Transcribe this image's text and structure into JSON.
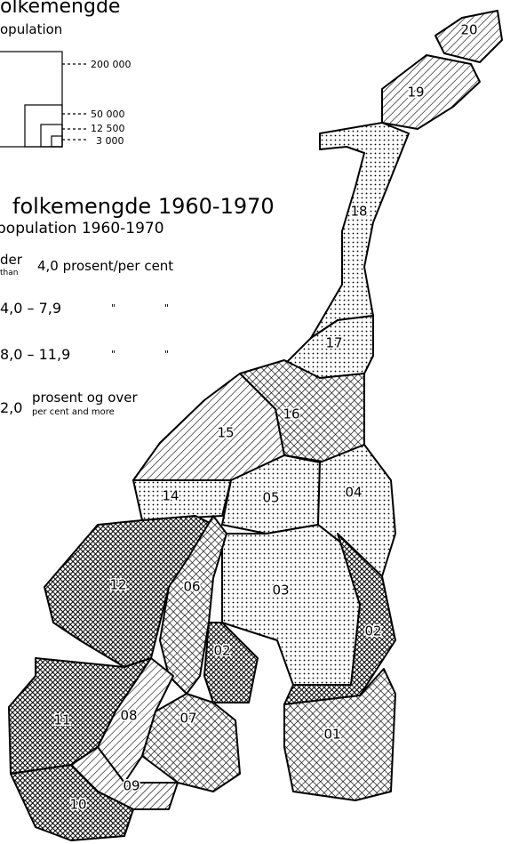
{
  "header": {
    "title": "olkemengde",
    "subtitle": "opulation"
  },
  "size_legend": {
    "labels": [
      "200 000",
      "50 000",
      "12 500",
      "3 000"
    ]
  },
  "growth_legend": {
    "title": "folkemengde 1960-1970",
    "subtitle": "population 1960-1970",
    "ditto": "\"",
    "items": [
      {
        "label": "der",
        "sublabel": "than",
        "text": "4,0 prosent/per cent"
      },
      {
        "label": "4,0 – 7,9"
      },
      {
        "label": "8,0 – 11,9"
      },
      {
        "label": "2,0",
        "text": "prosent og over",
        "sublabel": "per cent and more"
      }
    ]
  },
  "regions": [
    "20",
    "19",
    "18",
    "17",
    "16",
    "15",
    "14",
    "05",
    "04",
    "03",
    "02",
    "01",
    "12",
    "06",
    "02",
    "11",
    "08",
    "07",
    "09",
    "10"
  ]
}
